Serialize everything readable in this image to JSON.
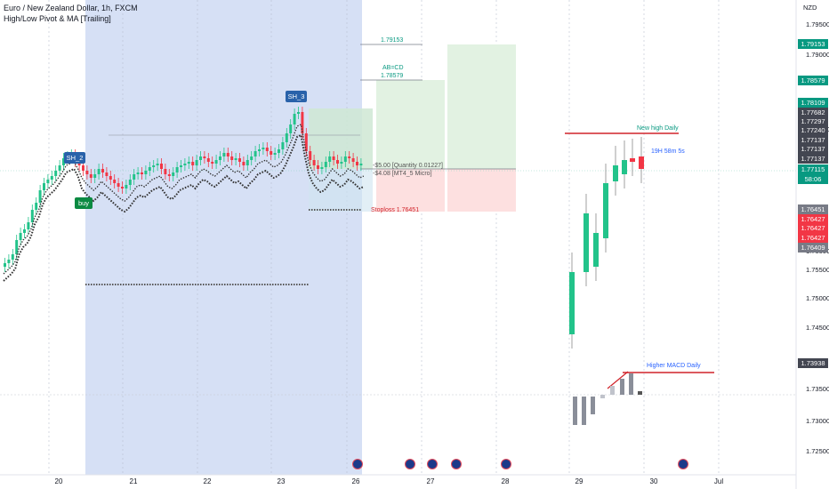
{
  "header": {
    "title": "Euro / New Zealand Dollar, 1h, FXCM",
    "indicator": "High/Low Pivot & MA [Trailing]"
  },
  "price_axis": {
    "currency": "NZD",
    "labels": [
      "1.79500",
      "1.79000",
      "1.77500",
      "1.76000",
      "1.75500",
      "1.75000",
      "1.74500",
      "1.73500",
      "1.73000",
      "1.72500"
    ]
  },
  "price_tags": [
    {
      "text": "1.79153",
      "bg": "#089981",
      "fg": "#ffffff"
    },
    {
      "text": "1.78579",
      "bg": "#089981",
      "fg": "#ffffff"
    },
    {
      "text": "1.78109",
      "bg": "#089981",
      "fg": "#ffffff"
    },
    {
      "text": "1.77682",
      "bg": "#434651",
      "fg": "#ffffff"
    },
    {
      "text": "1.77297",
      "bg": "#434651",
      "fg": "#ffffff"
    },
    {
      "text": "1.77240",
      "bg": "#434651",
      "fg": "#ffffff"
    },
    {
      "text": "1.77137",
      "bg": "#434651",
      "fg": "#ffffff"
    },
    {
      "text": "1.77137",
      "bg": "#434651",
      "fg": "#ffffff"
    },
    {
      "text": "1.77137",
      "bg": "#434651",
      "fg": "#ffffff"
    },
    {
      "text": "1.77115",
      "bg": "#089981",
      "fg": "#ffffff"
    },
    {
      "text": "58:06",
      "bg": "#089981",
      "fg": "#ffffff"
    },
    {
      "text": "1.76451",
      "bg": "#787b86",
      "fg": "#ffffff"
    },
    {
      "text": "1.76427",
      "bg": "#f23645",
      "fg": "#ffffff"
    },
    {
      "text": "1.76427",
      "bg": "#f23645",
      "fg": "#ffffff"
    },
    {
      "text": "1.76427",
      "bg": "#f23645",
      "fg": "#ffffff"
    },
    {
      "text": "1.76409",
      "bg": "#787b86",
      "fg": "#ffffff"
    },
    {
      "text": "1.73938",
      "bg": "#434651",
      "fg": "#ffffff"
    }
  ],
  "time_axis": [
    "20",
    "21",
    "22",
    "23",
    "26",
    "27",
    "28",
    "29",
    "30",
    "Jul"
  ],
  "annotations": {
    "sh2": "SH_2",
    "sh3": "SH_3",
    "buy": "buy",
    "level_top": "1.79153",
    "abcd": "AB=CD",
    "abcd_level": "1.78579",
    "position_line1": "-$5.00 [Quantity 0.01227]",
    "position_line2": "-$4.08 [MT4_5 Micro]",
    "stoploss": "Stoploss  1.76451",
    "new_high": "New high Daily",
    "countdown": "19H 58m 5s",
    "higher_macd": "Higher MACD Daily"
  },
  "colors": {
    "up": "#22c38a",
    "down": "#f23645",
    "highlight": "#d6e0f5",
    "profit_zone": "#e2f2e2",
    "loss_zone": "#fde0e0",
    "accent_green": "#089981",
    "accent_red": "#d1232a",
    "accent_blue": "#2962ff"
  },
  "icons": [
    "event-icon",
    "event-icon",
    "event-icon",
    "event-icon",
    "event-icon",
    "event-icon"
  ]
}
